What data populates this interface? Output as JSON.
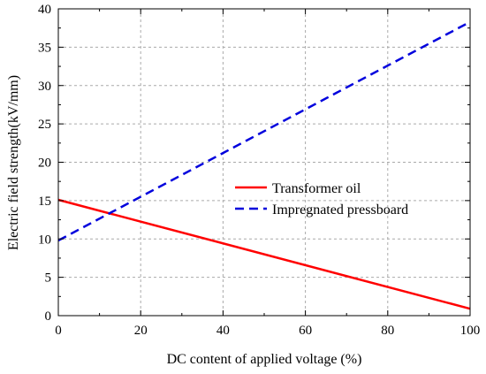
{
  "chart_data": {
    "type": "line",
    "xlabel": "DC content of applied voltage (%)",
    "ylabel": "Electric field strength(kV/mm)",
    "xlim": [
      0,
      100
    ],
    "ylim": [
      0,
      40
    ],
    "xticks": [
      0,
      20,
      40,
      60,
      80,
      100
    ],
    "yticks": [
      0,
      5,
      10,
      15,
      20,
      25,
      30,
      35,
      40
    ],
    "grid": true,
    "legend_position": "center-right",
    "series": [
      {
        "name": "Transformer oil",
        "color": "#ff0000",
        "line_style": "solid",
        "x": [
          0,
          100
        ],
        "y": [
          15.1,
          0.9
        ]
      },
      {
        "name": "Impregnated pressboard",
        "color": "#0000dd",
        "line_style": "dashed",
        "x": [
          0,
          100
        ],
        "y": [
          9.8,
          38.3
        ]
      }
    ]
  }
}
